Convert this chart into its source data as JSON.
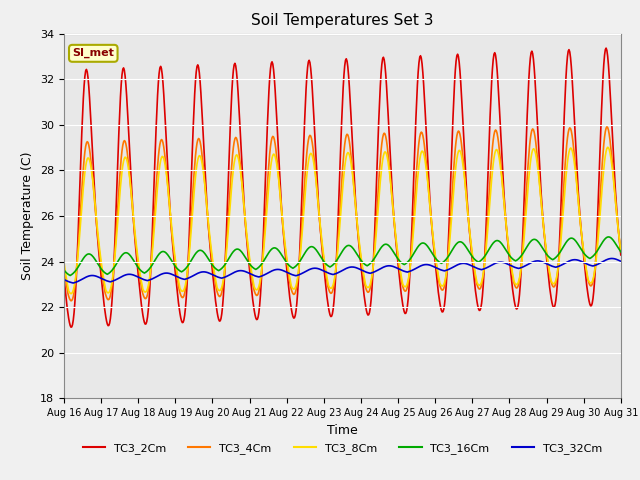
{
  "title": "Soil Temperatures Set 3",
  "xlabel": "Time",
  "ylabel": "Soil Temperature (C)",
  "ylim": [
    18,
    34
  ],
  "xlim": [
    0,
    360
  ],
  "x_tick_labels": [
    "Aug 16",
    "Aug 17",
    "Aug 18",
    "Aug 19",
    "Aug 20",
    "Aug 21",
    "Aug 22",
    "Aug 23",
    "Aug 24",
    "Aug 25",
    "Aug 26",
    "Aug 27",
    "Aug 28",
    "Aug 29",
    "Aug 30",
    "Aug 31"
  ],
  "x_tick_positions": [
    0,
    24,
    48,
    72,
    96,
    120,
    144,
    168,
    192,
    216,
    240,
    264,
    288,
    312,
    336,
    360
  ],
  "yticks": [
    18,
    20,
    22,
    24,
    26,
    28,
    30,
    32,
    34
  ],
  "background_color": "#e8e8e8",
  "fig_background": "#f0f0f0",
  "annotation_text": "SI_met",
  "annotation_color": "#880000",
  "annotation_bg": "#ffffcc",
  "annotation_border": "#aaaa00",
  "series": [
    {
      "name": "TC3_2Cm",
      "color": "#dd0000",
      "lw": 1.2
    },
    {
      "name": "TC3_4Cm",
      "color": "#ff7700",
      "lw": 1.2
    },
    {
      "name": "TC3_8Cm",
      "color": "#ffdd00",
      "lw": 1.2
    },
    {
      "name": "TC3_16Cm",
      "color": "#00aa00",
      "lw": 1.2
    },
    {
      "name": "TC3_32Cm",
      "color": "#0000cc",
      "lw": 1.2
    }
  ]
}
